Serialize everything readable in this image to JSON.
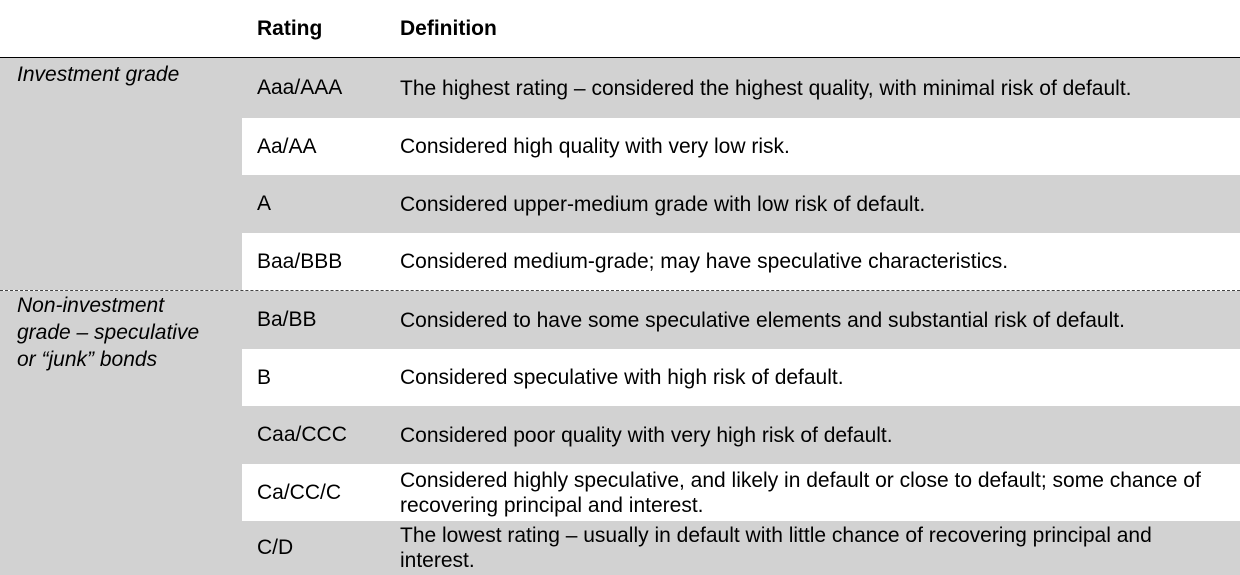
{
  "header": {
    "rating_label": "Rating",
    "definition_label": "Definition"
  },
  "groups": [
    {
      "label": "Investment grade"
    },
    {
      "label": "Non-investment\ngrade – speculative\nor “junk” bonds"
    }
  ],
  "rows": [
    {
      "rating": "Aaa/AAA",
      "definition": "The highest rating – considered the highest quality, with minimal risk of default."
    },
    {
      "rating": "Aa/AA",
      "definition": "Considered high quality with very low risk."
    },
    {
      "rating": "A",
      "definition": "Considered upper-medium grade with low risk of default."
    },
    {
      "rating": "Baa/BBB",
      "definition": "Considered medium-grade; may have speculative characteristics."
    },
    {
      "rating": "Ba/BB",
      "definition": "Considered to have some speculative elements and substantial risk of default."
    },
    {
      "rating": "B",
      "definition": "Considered speculative with high risk of default."
    },
    {
      "rating": "Caa/CCC",
      "definition": "Considered poor quality with very high risk of default."
    },
    {
      "rating": "Ca/CC/C",
      "definition": "Considered highly speculative, and likely in default or close to default; some chance of recovering principal and interest."
    },
    {
      "rating": "C/D",
      "definition": "The lowest rating – usually in default with little chance of recovering principal and interest."
    }
  ],
  "colors": {
    "shade": "#d2d2d2",
    "background": "#ffffff",
    "text": "#000000"
  }
}
